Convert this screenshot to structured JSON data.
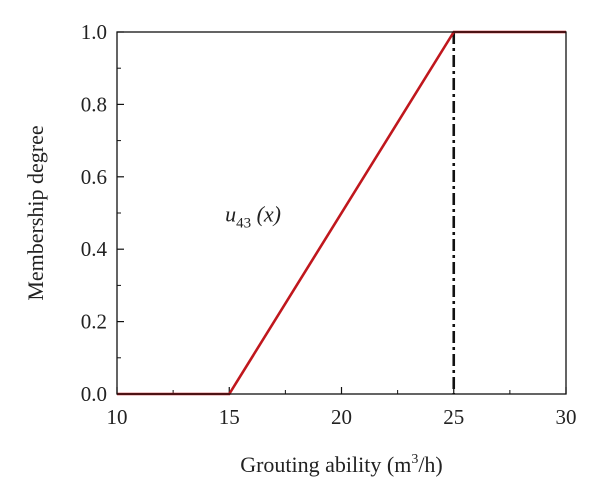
{
  "chart_data": {
    "type": "line",
    "xlabel": {
      "main": "Grouting ability (m",
      "sup": "3",
      "tail": "/h)"
    },
    "ylabel": "Membership degree",
    "xlim": [
      10,
      30
    ],
    "ylim": [
      0,
      1
    ],
    "xticks": [
      10,
      15,
      20,
      25,
      30
    ],
    "yticks": [
      0.0,
      0.2,
      0.4,
      0.6,
      0.8,
      1.0
    ],
    "ytick_labels": [
      "0.0",
      "0.2",
      "0.4",
      "0.6",
      "0.8",
      "1.0"
    ],
    "series": [
      {
        "color": "#c0171d",
        "x": [
          10,
          15,
          25,
          30
        ],
        "y": [
          0,
          0,
          1,
          1
        ]
      }
    ],
    "reference_lines": [
      {
        "orientation": "vertical",
        "x": 25,
        "style": "dash-dot",
        "color": "#111111"
      }
    ],
    "annotations": [
      {
        "base": "u",
        "sub": "43",
        "tail": " (x)",
        "x": 18.2,
        "y": 0.46
      }
    ],
    "grid": false,
    "legend": "none"
  }
}
